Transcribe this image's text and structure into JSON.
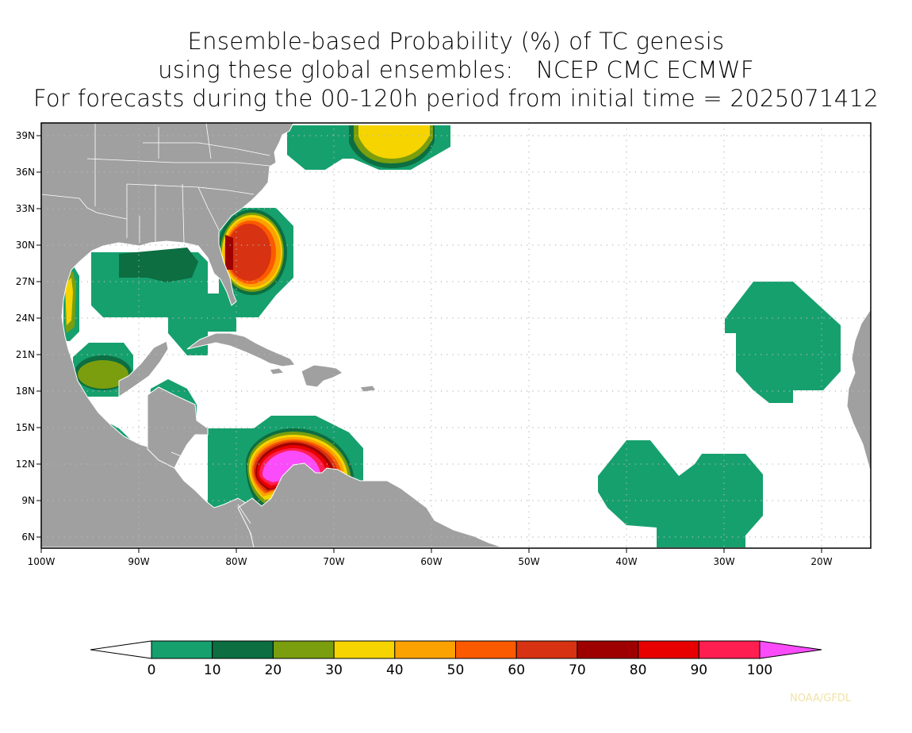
{
  "title": {
    "line1": "Ensemble-based Probability (%) of TC genesis",
    "line2": "using these global ensembles:   NCEP CMC ECMWF",
    "line3": "For forecasts during the 00-120h period from initial time = 2025071412"
  },
  "map": {
    "lat_labels": [
      "39N",
      "36N",
      "33N",
      "30N",
      "27N",
      "24N",
      "21N",
      "18N",
      "15N",
      "12N",
      "9N",
      "6N"
    ],
    "lon_labels": [
      "100W",
      "90W",
      "80W",
      "70W",
      "60W",
      "50W",
      "40W",
      "30W",
      "20W"
    ],
    "land_color": "#a0a0a0",
    "border_color": "#ffffff"
  },
  "colorbar": {
    "labels": [
      "0",
      "10",
      "20",
      "30",
      "40",
      "50",
      "60",
      "70",
      "80",
      "90",
      "100"
    ],
    "colors": [
      "#ffffff",
      "#16a06e",
      "#0c6e41",
      "#7a9e0e",
      "#f5d400",
      "#fba200",
      "#fc5a00",
      "#d73211",
      "#9e0000",
      "#e80000",
      "#ff1e50",
      "#fb4cfb"
    ]
  },
  "credit": "NOAA/GFDL"
}
